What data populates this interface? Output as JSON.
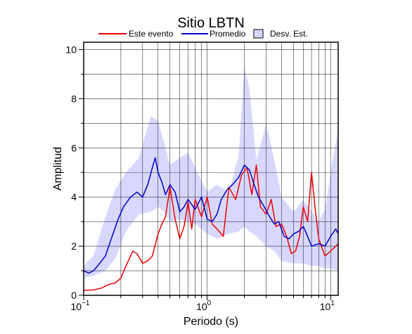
{
  "chart_data": {
    "type": "line",
    "title": "Sitio LBTN",
    "xlabel": "Periodo (s)",
    "ylabel": "Amplitud",
    "xscale": "log",
    "xlim": [
      0.1,
      11.5
    ],
    "ylim": [
      0,
      10.3
    ],
    "grid": true,
    "legend_position": "top",
    "x_ticks": [
      {
        "base": "10",
        "exp": "−1",
        "value": 0.1
      },
      {
        "base": "10",
        "exp": "0",
        "value": 1
      },
      {
        "base": "10",
        "exp": "1",
        "value": 10
      }
    ],
    "y_ticks": [
      {
        "label": "0",
        "value": 0
      },
      {
        "label": "2",
        "value": 2
      },
      {
        "label": "4",
        "value": 4
      },
      {
        "label": "6",
        "value": 6
      },
      {
        "label": "8",
        "value": 8
      },
      {
        "label": "10",
        "value": 10
      }
    ],
    "legend": [
      {
        "label": "Este evento",
        "kind": "line",
        "color": "#ee0000"
      },
      {
        "label": "Promedio",
        "kind": "line",
        "color": "#0000cc"
      },
      {
        "label": "Desv. Est.",
        "kind": "box",
        "color": "#d8d8ff"
      }
    ],
    "band": {
      "name": "Desv. Est.",
      "color": "#d8d8ff",
      "x": [
        0.1,
        0.12,
        0.15,
        0.18,
        0.22,
        0.28,
        0.35,
        0.4,
        0.45,
        0.5,
        0.6,
        0.7,
        0.8,
        1.0,
        1.2,
        1.5,
        1.8,
        2.0,
        2.2,
        2.5,
        3.0,
        3.5,
        4.0,
        5.0,
        6.0,
        7.0,
        8.0,
        9.0,
        10.0,
        11.5
      ],
      "lower": [
        0.7,
        0.8,
        1.0,
        1.5,
        2.6,
        3.3,
        3.4,
        3.6,
        3.4,
        3.0,
        3.1,
        3.0,
        2.9,
        2.5,
        2.3,
        2.5,
        2.6,
        2.8,
        2.6,
        2.4,
        2.0,
        1.8,
        1.4,
        1.3,
        1.3,
        1.2,
        1.2,
        1.1,
        1.1,
        1.0
      ],
      "upper": [
        1.2,
        1.6,
        3.2,
        4.3,
        5.0,
        5.6,
        7.3,
        7.1,
        6.2,
        5.3,
        5.6,
        5.8,
        5.2,
        4.2,
        4.5,
        4.2,
        5.7,
        9.3,
        8.4,
        5.5,
        7.0,
        5.5,
        4.0,
        3.4,
        3.9,
        3.4,
        3.0,
        3.5,
        5.0,
        6.8
      ]
    },
    "series": [
      {
        "name": "Este evento",
        "color": "#ee0000",
        "x": [
          0.1,
          0.12,
          0.14,
          0.16,
          0.18,
          0.2,
          0.22,
          0.25,
          0.27,
          0.3,
          0.33,
          0.36,
          0.4,
          0.43,
          0.46,
          0.5,
          0.55,
          0.6,
          0.65,
          0.7,
          0.75,
          0.8,
          0.9,
          1.0,
          1.1,
          1.2,
          1.35,
          1.5,
          1.7,
          1.9,
          2.1,
          2.3,
          2.5,
          2.7,
          3.0,
          3.3,
          3.6,
          4.0,
          4.4,
          4.8,
          5.2,
          5.6,
          6.0,
          6.5,
          7.0,
          7.5,
          8.0,
          9.0,
          10.0,
          11.5
        ],
        "y": [
          0.2,
          0.22,
          0.3,
          0.45,
          0.5,
          0.7,
          1.2,
          1.8,
          1.7,
          1.3,
          1.4,
          1.6,
          2.5,
          2.9,
          3.2,
          4.4,
          3.1,
          2.3,
          2.8,
          3.8,
          2.7,
          3.9,
          3.2,
          4.0,
          2.9,
          2.7,
          2.4,
          4.4,
          3.9,
          4.9,
          5.2,
          4.1,
          5.3,
          3.6,
          3.3,
          3.9,
          2.8,
          2.9,
          2.4,
          1.7,
          1.8,
          2.4,
          3.6,
          3.0,
          5.0,
          3.5,
          2.3,
          1.6,
          1.8,
          2.1
        ]
      },
      {
        "name": "Promedio",
        "color": "#0000cc",
        "x": [
          0.1,
          0.11,
          0.12,
          0.13,
          0.15,
          0.17,
          0.19,
          0.21,
          0.24,
          0.27,
          0.3,
          0.33,
          0.36,
          0.38,
          0.4,
          0.43,
          0.46,
          0.5,
          0.55,
          0.6,
          0.65,
          0.7,
          0.8,
          0.9,
          1.0,
          1.1,
          1.2,
          1.3,
          1.45,
          1.6,
          1.8,
          2.0,
          2.2,
          2.4,
          2.6,
          2.9,
          3.2,
          3.5,
          3.8,
          4.2,
          4.6,
          5.0,
          5.5,
          6.0,
          6.5,
          7.0,
          8.0,
          9.0,
          10.0,
          11.0,
          11.5
        ],
        "y": [
          1.0,
          0.9,
          1.0,
          1.2,
          1.6,
          2.4,
          3.1,
          3.6,
          4.0,
          4.2,
          4.0,
          4.5,
          5.2,
          5.6,
          5.0,
          4.6,
          4.1,
          4.5,
          4.2,
          3.4,
          3.6,
          3.9,
          3.5,
          4.0,
          3.1,
          3.0,
          3.3,
          3.9,
          4.3,
          4.5,
          4.8,
          5.3,
          5.1,
          4.5,
          4.0,
          3.6,
          3.2,
          2.9,
          3.0,
          2.4,
          2.3,
          2.5,
          2.6,
          2.8,
          2.4,
          2.0,
          2.1,
          2.0,
          2.4,
          2.7,
          2.5
        ]
      }
    ]
  }
}
